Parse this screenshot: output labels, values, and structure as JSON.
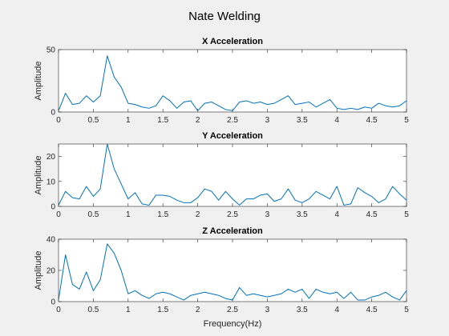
{
  "figure": {
    "title": "Nate Welding",
    "xlabel": "Frequency(Hz)",
    "line_color": "#0072bd"
  },
  "chart_data": [
    {
      "type": "line",
      "title": "X Acceleration",
      "ylabel": "Amplitude",
      "xlim": [
        0,
        5
      ],
      "ylim": [
        0,
        50
      ],
      "xticks": [
        "0",
        "0.5",
        "1",
        "1.5",
        "2",
        "2.5",
        "3",
        "3.5",
        "4",
        "4.5",
        "5"
      ],
      "yticks": [
        "0",
        "50"
      ],
      "x": [
        0,
        0.1,
        0.2,
        0.3,
        0.4,
        0.5,
        0.6,
        0.7,
        0.8,
        0.9,
        1.0,
        1.1,
        1.2,
        1.3,
        1.4,
        1.5,
        1.6,
        1.7,
        1.8,
        1.9,
        2.0,
        2.1,
        2.2,
        2.3,
        2.4,
        2.5,
        2.6,
        2.7,
        2.8,
        2.9,
        3.0,
        3.1,
        3.2,
        3.3,
        3.4,
        3.5,
        3.6,
        3.7,
        3.8,
        3.9,
        4.0,
        4.1,
        4.2,
        4.3,
        4.4,
        4.5,
        4.6,
        4.7,
        4.8,
        4.9,
        5.0
      ],
      "y": [
        1,
        15,
        6,
        7,
        13,
        8,
        13,
        45,
        28,
        20,
        7,
        6,
        4,
        3,
        5,
        13,
        9,
        3,
        8,
        9,
        1,
        7,
        8,
        5,
        2,
        1,
        8,
        9,
        7,
        8,
        6,
        7,
        10,
        13,
        6,
        7,
        8,
        4,
        7,
        10,
        3,
        2,
        3,
        2,
        4,
        3,
        7,
        5,
        4,
        5,
        9
      ]
    },
    {
      "type": "line",
      "title": "Y Acceleration",
      "ylabel": "Amplitude",
      "xlim": [
        0,
        5
      ],
      "ylim": [
        0,
        25
      ],
      "xticks": [
        "0",
        "0.5",
        "1",
        "1.5",
        "2",
        "2.5",
        "3",
        "3.5",
        "4",
        "4.5",
        "5"
      ],
      "yticks": [
        "0",
        "10",
        "20"
      ],
      "x": [
        0,
        0.1,
        0.2,
        0.3,
        0.4,
        0.5,
        0.6,
        0.7,
        0.8,
        0.9,
        1.0,
        1.1,
        1.2,
        1.3,
        1.4,
        1.5,
        1.6,
        1.7,
        1.8,
        1.9,
        2.0,
        2.1,
        2.2,
        2.3,
        2.4,
        2.5,
        2.6,
        2.7,
        2.8,
        2.9,
        3.0,
        3.1,
        3.2,
        3.3,
        3.4,
        3.5,
        3.6,
        3.7,
        3.8,
        3.9,
        4.0,
        4.1,
        4.2,
        4.3,
        4.4,
        4.5,
        4.6,
        4.7,
        4.8,
        4.9,
        5.0
      ],
      "y": [
        0.5,
        6,
        3.5,
        3,
        8,
        4,
        7,
        25,
        15,
        9,
        3,
        5.5,
        1,
        0.5,
        4.5,
        4.5,
        4,
        2.5,
        1.5,
        1.5,
        3.5,
        7,
        6,
        2.5,
        6,
        3,
        0.5,
        3,
        3,
        4.5,
        5,
        2,
        3,
        7,
        2.5,
        1.5,
        3,
        6,
        4.5,
        3,
        8,
        0.5,
        1,
        7.5,
        5.5,
        4,
        1.5,
        3,
        8,
        5,
        2.5
      ]
    },
    {
      "type": "line",
      "title": "Z Acceleration",
      "ylabel": "Amplitude",
      "xlim": [
        0,
        5
      ],
      "ylim": [
        0,
        40
      ],
      "xticks": [
        "0",
        "0.5",
        "1",
        "1.5",
        "2",
        "2.5",
        "3",
        "3.5",
        "4",
        "4.5",
        "5"
      ],
      "yticks": [
        "0",
        "20",
        "40"
      ],
      "x": [
        0,
        0.1,
        0.2,
        0.3,
        0.4,
        0.5,
        0.6,
        0.7,
        0.8,
        0.9,
        1.0,
        1.1,
        1.2,
        1.3,
        1.4,
        1.5,
        1.6,
        1.7,
        1.8,
        1.9,
        2.0,
        2.1,
        2.2,
        2.3,
        2.4,
        2.5,
        2.6,
        2.7,
        2.8,
        2.9,
        3.0,
        3.1,
        3.2,
        3.3,
        3.4,
        3.5,
        3.6,
        3.7,
        3.8,
        3.9,
        4.0,
        4.1,
        4.2,
        4.3,
        4.4,
        4.5,
        4.6,
        4.7,
        4.8,
        4.9,
        5.0
      ],
      "y": [
        1,
        30,
        11,
        8,
        19,
        7,
        14,
        37,
        31,
        20,
        5,
        7,
        4,
        2,
        5,
        6,
        5,
        3,
        1,
        4,
        5,
        6,
        5,
        4,
        2,
        1,
        9,
        4,
        5,
        4,
        3,
        4,
        5,
        8,
        6,
        8,
        2,
        8,
        6,
        5,
        6,
        2,
        6,
        1,
        1,
        3,
        4,
        6,
        3,
        1,
        7
      ]
    }
  ]
}
